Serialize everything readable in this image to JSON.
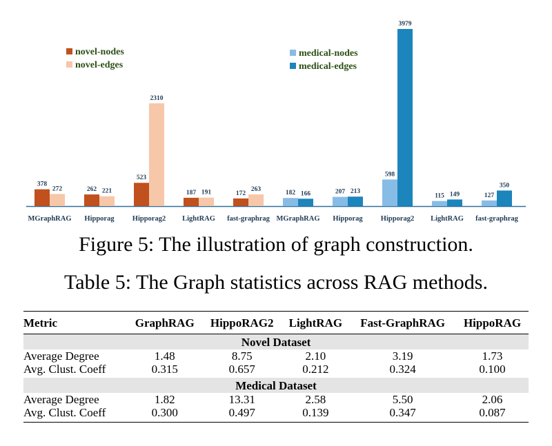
{
  "chart_data": {
    "type": "bar",
    "title": "",
    "xlabel": "",
    "ylabel": "",
    "ylim": [
      0,
      3979
    ],
    "grid": false,
    "show_y_axis": false,
    "groups": [
      {
        "dataset": "novel",
        "categories": [
          "MGraphRAG",
          "Hipporag",
          "Hipporag2",
          "LightRAG",
          "fast-graphrag"
        ],
        "series": [
          {
            "name": "novel-nodes",
            "color": "#c0501d",
            "values": [
              378,
              262,
              523,
              187,
              172
            ]
          },
          {
            "name": "novel-edges",
            "color": "#f7c7a9",
            "values": [
              272,
              221,
              2310,
              191,
              263
            ]
          }
        ]
      },
      {
        "dataset": "medical",
        "categories": [
          "MGraphRAG",
          "Hipporag",
          "Hipporag2",
          "LightRAG",
          "fast-graphrag"
        ],
        "series": [
          {
            "name": "medical-nodes",
            "color": "#87bce6",
            "values": [
              182,
              207,
              598,
              115,
              127
            ]
          },
          {
            "name": "medical-edges",
            "color": "#1c85bb",
            "values": [
              166,
              213,
              3979,
              149,
              350
            ]
          }
        ]
      }
    ],
    "legend": [
      {
        "position": "top-left",
        "entries": [
          "novel-nodes",
          "novel-edges"
        ]
      },
      {
        "position": "top-center",
        "entries": [
          "medical-nodes",
          "medical-edges"
        ]
      }
    ],
    "label_color": "#1f3a54",
    "legend_text_color": "#2d5016",
    "axis_color": "#2e6f9e"
  },
  "figure_caption": "Figure 5: The illustration of graph construction.",
  "table_caption": "Table 5: The Graph statistics across RAG methods.",
  "table": {
    "headers": [
      "Metric",
      "GraphRAG",
      "HippoRAG2",
      "LightRAG",
      "Fast-GraphRAG",
      "HippoRAG"
    ],
    "sections": [
      {
        "title": "Novel Dataset",
        "rows": [
          [
            "Average Degree",
            "1.48",
            "8.75",
            "2.10",
            "3.19",
            "1.73"
          ],
          [
            "Avg. Clust. Coeff",
            "0.315",
            "0.657",
            "0.212",
            "0.324",
            "0.100"
          ]
        ]
      },
      {
        "title": "Medical Dataset",
        "rows": [
          [
            "Average Degree",
            "1.82",
            "13.31",
            "2.58",
            "5.50",
            "2.06"
          ],
          [
            "Avg. Clust. Coeff",
            "0.300",
            "0.497",
            "0.139",
            "0.347",
            "0.087"
          ]
        ]
      }
    ]
  }
}
